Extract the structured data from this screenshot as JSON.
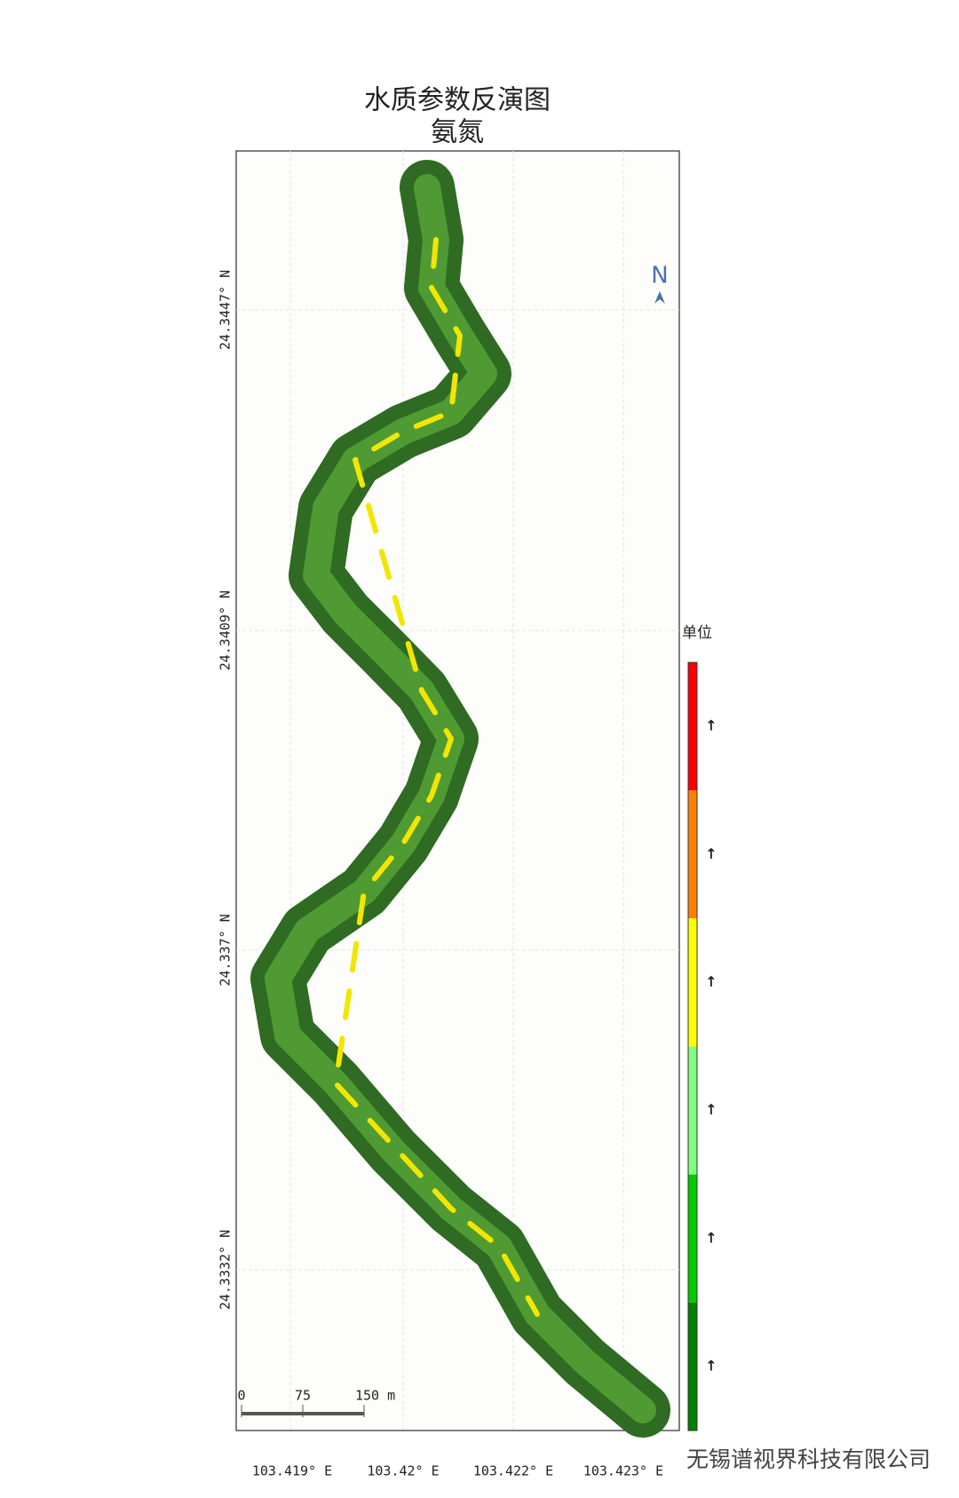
{
  "header": {
    "title": "水质参数反演图",
    "subtitle": "氨氮"
  },
  "map": {
    "lat_labels": [
      "24.3447° N",
      "24.3409° N",
      "24.337° N",
      "24.3332° N"
    ],
    "lon_labels": [
      "103.419° E",
      "103.42° E",
      "103.422° E",
      "103.423° E"
    ],
    "north": "N",
    "scale_bar": {
      "labels": [
        "0",
        "75",
        "150 m"
      ]
    }
  },
  "legend": {
    "title": "单位",
    "bands": [
      {
        "color": "#ff0000",
        "label": "↑"
      },
      {
        "color": "#ff8000",
        "label": "↑"
      },
      {
        "color": "#ffff00",
        "label": "↑"
      },
      {
        "color": "#80ff80",
        "label": "↑"
      },
      {
        "color": "#00cc00",
        "label": "↑"
      },
      {
        "color": "#008000",
        "label": "↑"
      }
    ]
  },
  "watermark": "无锡谱视界科技有限公司"
}
